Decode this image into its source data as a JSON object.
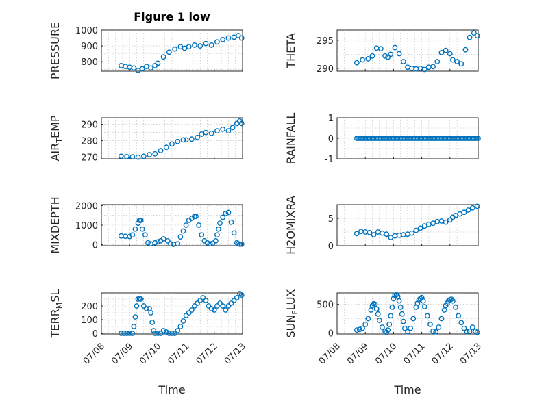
{
  "colors": {
    "marker": "#0072bd",
    "axis": "#262626",
    "grid": "#b8b8b8"
  },
  "figure": {
    "title": "Figure 1 low",
    "xtick_labels": [
      "07/08",
      "07/09",
      "07/10",
      "07/11",
      "07/12",
      "07/13"
    ],
    "xlabel": "Time"
  },
  "chart_data": [
    {
      "type": "scatter",
      "ylabel": "PRESSURE",
      "xlim": [
        0,
        5
      ],
      "ylim": [
        740,
        1000
      ],
      "yticks": [
        800,
        900,
        1000
      ],
      "grid": true,
      "marker": "open-circle",
      "x": [
        0.7,
        0.85,
        1.0,
        1.15,
        1.3,
        1.45,
        1.6,
        1.75,
        1.9,
        2.0,
        2.2,
        2.4,
        2.6,
        2.8,
        2.95,
        3.1,
        3.3,
        3.5,
        3.7,
        3.9,
        4.1,
        4.3,
        4.5,
        4.7,
        4.85,
        4.97
      ],
      "y": [
        775,
        770,
        765,
        760,
        745,
        755,
        770,
        760,
        775,
        790,
        830,
        860,
        880,
        895,
        885,
        895,
        905,
        900,
        915,
        905,
        925,
        940,
        950,
        955,
        965,
        950
      ]
    },
    {
      "type": "scatter",
      "ylabel": "THETA",
      "xlim": [
        0,
        5
      ],
      "ylim": [
        289.5,
        296.8
      ],
      "yticks": [
        290,
        295
      ],
      "grid": true,
      "marker": "open-circle",
      "x": [
        0.7,
        0.9,
        1.1,
        1.25,
        1.4,
        1.55,
        1.7,
        1.8,
        1.9,
        2.05,
        2.2,
        2.35,
        2.5,
        2.65,
        2.8,
        2.95,
        3.1,
        3.25,
        3.4,
        3.55,
        3.7,
        3.85,
        4.0,
        4.1,
        4.25,
        4.4,
        4.55,
        4.7,
        4.85,
        4.97
      ],
      "y": [
        291.0,
        291.5,
        291.7,
        292.2,
        293.6,
        293.5,
        292.2,
        292.0,
        292.5,
        293.7,
        292.6,
        291.2,
        290.2,
        290.0,
        289.9,
        290.0,
        289.8,
        290.2,
        290.3,
        291.2,
        292.8,
        293.2,
        292.6,
        291.5,
        291.2,
        290.8,
        293.3,
        295.5,
        296.3,
        295.8
      ]
    },
    {
      "type": "scatter",
      "ylabel": "AIR_TEMP",
      "ylabel_main": "AIR",
      "ylabel_sub": "T",
      "ylabel_rest": "EMP",
      "xlim": [
        0,
        5
      ],
      "ylim": [
        269,
        294
      ],
      "yticks": [
        270,
        280,
        290
      ],
      "grid": true,
      "marker": "open-circle",
      "x": [
        0.7,
        0.9,
        1.1,
        1.3,
        1.5,
        1.7,
        1.9,
        2.1,
        2.3,
        2.5,
        2.7,
        2.9,
        3.0,
        3.2,
        3.4,
        3.55,
        3.7,
        3.9,
        4.1,
        4.3,
        4.5,
        4.65,
        4.8,
        4.9,
        4.97
      ],
      "y": [
        270.5,
        270.3,
        270.2,
        270.0,
        270.5,
        271.5,
        272.0,
        274.0,
        276.0,
        278.0,
        279.5,
        280.5,
        280.5,
        281.0,
        282.0,
        284.0,
        285.0,
        284.5,
        286.0,
        287.0,
        286.0,
        288.0,
        290.5,
        292.0,
        290.5
      ]
    },
    {
      "type": "scatter",
      "ylabel": "RAINFALL",
      "xlim": [
        0,
        5
      ],
      "ylim": [
        -1,
        1
      ],
      "yticks": [
        -1,
        0,
        1
      ],
      "grid": true,
      "marker": "open-circle",
      "x_range": [
        0.7,
        5.0
      ],
      "constant_value": 0
    },
    {
      "type": "scatter",
      "ylabel": "MIXDEPTH",
      "xlim": [
        0,
        5
      ],
      "ylim": [
        -50,
        2050
      ],
      "yticks": [
        0,
        1000,
        2000
      ],
      "grid": true,
      "marker": "open-circle",
      "x": [
        0.7,
        0.85,
        1.0,
        1.1,
        1.2,
        1.3,
        1.35,
        1.4,
        1.45,
        1.55,
        1.65,
        1.75,
        1.9,
        2.0,
        2.1,
        2.2,
        2.35,
        2.45,
        2.55,
        2.7,
        2.8,
        2.9,
        3.0,
        3.1,
        3.2,
        3.3,
        3.35,
        3.45,
        3.55,
        3.65,
        3.75,
        3.85,
        3.95,
        4.05,
        4.1,
        4.15,
        4.2,
        4.3,
        4.4,
        4.5,
        4.6,
        4.7,
        4.8,
        4.85,
        4.9,
        4.97
      ],
      "y": [
        450,
        430,
        420,
        500,
        800,
        1100,
        1250,
        1250,
        800,
        500,
        100,
        50,
        100,
        150,
        200,
        300,
        200,
        50,
        20,
        50,
        400,
        700,
        1000,
        1250,
        1350,
        1450,
        1450,
        1000,
        500,
        200,
        100,
        50,
        80,
        200,
        500,
        800,
        1100,
        1400,
        1600,
        1650,
        1150,
        600,
        100,
        50,
        30,
        30
      ]
    },
    {
      "type": "scatter",
      "ylabel": "H2OMIXRA",
      "xlim": [
        0,
        5
      ],
      "ylim": [
        0,
        7.5
      ],
      "yticks": [
        0,
        5
      ],
      "grid": true,
      "marker": "open-circle",
      "x": [
        0.7,
        0.85,
        1.0,
        1.15,
        1.3,
        1.45,
        1.6,
        1.75,
        1.9,
        2.05,
        2.2,
        2.35,
        2.5,
        2.65,
        2.8,
        2.95,
        3.1,
        3.25,
        3.4,
        3.55,
        3.7,
        3.85,
        4.0,
        4.1,
        4.2,
        4.35,
        4.5,
        4.65,
        4.8,
        4.97
      ],
      "y": [
        2.2,
        2.6,
        2.5,
        2.4,
        2.0,
        2.5,
        2.3,
        2.1,
        1.5,
        1.8,
        1.9,
        2.0,
        2.1,
        2.3,
        2.8,
        3.2,
        3.6,
        3.9,
        4.1,
        4.4,
        4.5,
        4.3,
        4.7,
        5.2,
        5.5,
        5.8,
        6.1,
        6.5,
        6.9,
        7.2
      ]
    },
    {
      "type": "scatter",
      "ylabel": "TERR_MSL",
      "ylabel_main": "TERR",
      "ylabel_sub": "M",
      "ylabel_rest": "SL",
      "xlim": [
        0,
        5
      ],
      "ylim": [
        -5,
        295
      ],
      "yticks": [
        0,
        100,
        200
      ],
      "grid": true,
      "marker": "open-circle",
      "x": [
        0.7,
        0.8,
        0.9,
        1.0,
        1.1,
        1.15,
        1.2,
        1.25,
        1.3,
        1.35,
        1.4,
        1.5,
        1.6,
        1.7,
        1.75,
        1.8,
        1.85,
        1.9,
        2.0,
        2.1,
        2.2,
        2.3,
        2.4,
        2.5,
        2.6,
        2.7,
        2.8,
        2.9,
        3.0,
        3.1,
        3.2,
        3.3,
        3.4,
        3.5,
        3.6,
        3.7,
        3.8,
        3.9,
        4.0,
        4.1,
        4.2,
        4.3,
        4.4,
        4.5,
        4.6,
        4.7,
        4.8,
        4.9,
        4.97
      ],
      "y": [
        0,
        0,
        0,
        0,
        0,
        50,
        120,
        200,
        250,
        255,
        250,
        200,
        180,
        180,
        150,
        80,
        20,
        0,
        0,
        0,
        20,
        10,
        0,
        0,
        0,
        20,
        50,
        90,
        130,
        150,
        170,
        200,
        220,
        240,
        260,
        240,
        200,
        180,
        170,
        200,
        220,
        200,
        170,
        200,
        220,
        240,
        260,
        290,
        280
      ]
    },
    {
      "type": "scatter",
      "ylabel": "SUN_FLUX",
      "ylabel_main": "SUN",
      "ylabel_sub": "F",
      "ylabel_rest": "LUX",
      "xlim": [
        0,
        5
      ],
      "ylim": [
        -20,
        700
      ],
      "yticks": [
        0,
        500
      ],
      "grid": true,
      "marker": "open-circle",
      "x": [
        0.7,
        0.8,
        0.9,
        1.0,
        1.1,
        1.2,
        1.25,
        1.3,
        1.35,
        1.4,
        1.45,
        1.5,
        1.6,
        1.7,
        1.75,
        1.8,
        1.85,
        1.9,
        1.95,
        2.0,
        2.05,
        2.1,
        2.15,
        2.2,
        2.25,
        2.3,
        2.35,
        2.4,
        2.5,
        2.6,
        2.7,
        2.8,
        2.85,
        2.9,
        2.95,
        3.0,
        3.05,
        3.1,
        3.2,
        3.3,
        3.4,
        3.5,
        3.6,
        3.7,
        3.8,
        3.85,
        3.9,
        3.95,
        4.0,
        4.05,
        4.1,
        4.2,
        4.3,
        4.4,
        4.5,
        4.6,
        4.7,
        4.8,
        4.9,
        4.97
      ],
      "y": [
        50,
        60,
        80,
        150,
        250,
        400,
        480,
        510,
        500,
        420,
        330,
        220,
        100,
        30,
        10,
        50,
        150,
        300,
        450,
        600,
        660,
        670,
        640,
        560,
        450,
        330,
        200,
        80,
        20,
        80,
        250,
        450,
        520,
        580,
        600,
        620,
        560,
        460,
        300,
        150,
        30,
        20,
        100,
        250,
        400,
        480,
        520,
        560,
        580,
        590,
        560,
        450,
        300,
        180,
        80,
        20,
        30,
        100,
        30,
        10
      ]
    }
  ]
}
